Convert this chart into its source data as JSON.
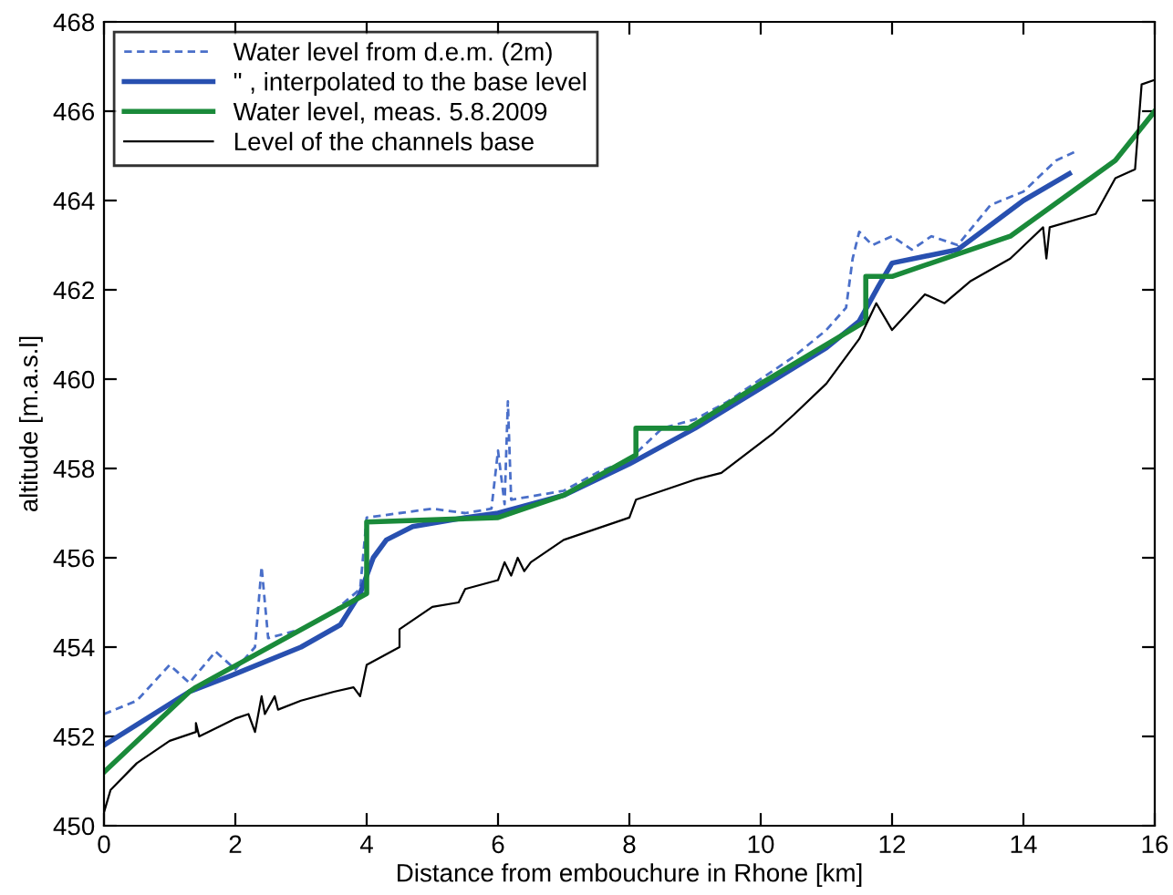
{
  "chart_data": {
    "type": "line",
    "xlabel": "Distance from embouchure in Rhone [km]",
    "ylabel": "altitude [m.a.s.l]",
    "xlim": [
      0,
      16
    ],
    "ylim": [
      450,
      468
    ],
    "xticks": [
      0,
      2,
      4,
      6,
      8,
      10,
      12,
      14,
      16
    ],
    "yticks": [
      450,
      452,
      454,
      456,
      458,
      460,
      462,
      464,
      466,
      468
    ],
    "grid": false,
    "legend": "top left",
    "marker": "none",
    "series": [
      {
        "name": "Water level from d.e.m. (2m)",
        "color": "#4a6fc9",
        "line_style": "dashed",
        "x": [
          0,
          0.5,
          1,
          1.3,
          1.7,
          2,
          2.3,
          2.4,
          2.5,
          3,
          3.5,
          3.9,
          4.0,
          4.5,
          5,
          5.5,
          5.9,
          6.0,
          6.1,
          6.15,
          6.2,
          7,
          7.5,
          8,
          8.5,
          9,
          9.5,
          10,
          10.5,
          11,
          11.3,
          11.4,
          11.5,
          11.7,
          12,
          12.3,
          12.6,
          13,
          13.5,
          14,
          14.5,
          14.8
        ],
        "values": [
          452.5,
          452.8,
          453.6,
          453.2,
          453.9,
          453.5,
          454.0,
          455.8,
          454.2,
          454.4,
          454.8,
          455.3,
          456.9,
          457.0,
          457.1,
          457.0,
          457.1,
          458.4,
          457.2,
          459.5,
          457.3,
          457.5,
          457.9,
          458.2,
          458.9,
          459.1,
          459.5,
          460.0,
          460.5,
          461.1,
          461.6,
          462.7,
          463.3,
          463.0,
          463.2,
          462.9,
          463.2,
          463.0,
          463.9,
          464.2,
          464.9,
          465.1
        ]
      },
      {
        "name": "\" , interpolated to the base level",
        "color": "#2850b0",
        "line_style": "solid",
        "x": [
          0,
          1.3,
          2,
          3,
          3.6,
          3.9,
          4.1,
          4.3,
          4.7,
          5.5,
          6,
          7,
          8,
          9,
          10,
          11,
          11.5,
          11.8,
          12,
          13,
          14,
          14.7
        ],
        "values": [
          451.8,
          453.0,
          453.4,
          454.0,
          454.5,
          455.2,
          456.0,
          456.4,
          456.7,
          456.9,
          457.0,
          457.4,
          458.1,
          458.9,
          459.8,
          460.7,
          461.3,
          462.1,
          462.6,
          462.9,
          464.0,
          464.6
        ]
      },
      {
        "name": "Water level, meas. 5.8.2009",
        "color": "#1a8a3a",
        "line_style": "solid",
        "x": [
          0,
          1.3,
          1.4,
          4.0,
          4.0,
          6.0,
          7,
          8.1,
          8.1,
          8.9,
          10,
          11.6,
          11.6,
          12,
          13.8,
          15.4,
          16
        ],
        "values": [
          451.2,
          453.0,
          453.1,
          455.2,
          456.8,
          456.9,
          457.4,
          458.3,
          458.9,
          458.9,
          459.9,
          461.3,
          462.3,
          462.3,
          463.2,
          464.9,
          466.0
        ]
      },
      {
        "name": "Level of the channels base",
        "color": "#000000",
        "line_style": "solid",
        "x": [
          0,
          0.1,
          0.5,
          1,
          1.4,
          1.4,
          1.45,
          2,
          2.2,
          2.3,
          2.4,
          2.45,
          2.6,
          2.65,
          3,
          3.5,
          3.8,
          3.9,
          4.0,
          4.5,
          4.5,
          5,
          5.4,
          5.5,
          6,
          6.1,
          6.2,
          6.3,
          6.4,
          6.5,
          7,
          8,
          8.1,
          9,
          9.4,
          10.2,
          10.5,
          11,
          11.5,
          11.76,
          12,
          12.5,
          12.8,
          13.2,
          13.8,
          14.3,
          14.35,
          14.4,
          15.1,
          15.4,
          15.7,
          15.8,
          16
        ],
        "values": [
          450.3,
          450.8,
          451.4,
          451.9,
          452.1,
          452.3,
          452.0,
          452.4,
          452.5,
          452.1,
          452.9,
          452.5,
          452.9,
          452.6,
          452.8,
          453.0,
          453.1,
          452.9,
          453.6,
          454.0,
          454.4,
          454.9,
          455.0,
          455.3,
          455.5,
          455.9,
          455.6,
          456.0,
          455.7,
          455.9,
          456.4,
          456.9,
          457.3,
          457.75,
          457.9,
          458.8,
          459.2,
          459.9,
          460.9,
          461.7,
          461.1,
          461.9,
          461.7,
          462.2,
          462.7,
          463.4,
          462.7,
          463.4,
          463.7,
          464.5,
          464.7,
          466.6,
          466.7
        ]
      }
    ]
  }
}
